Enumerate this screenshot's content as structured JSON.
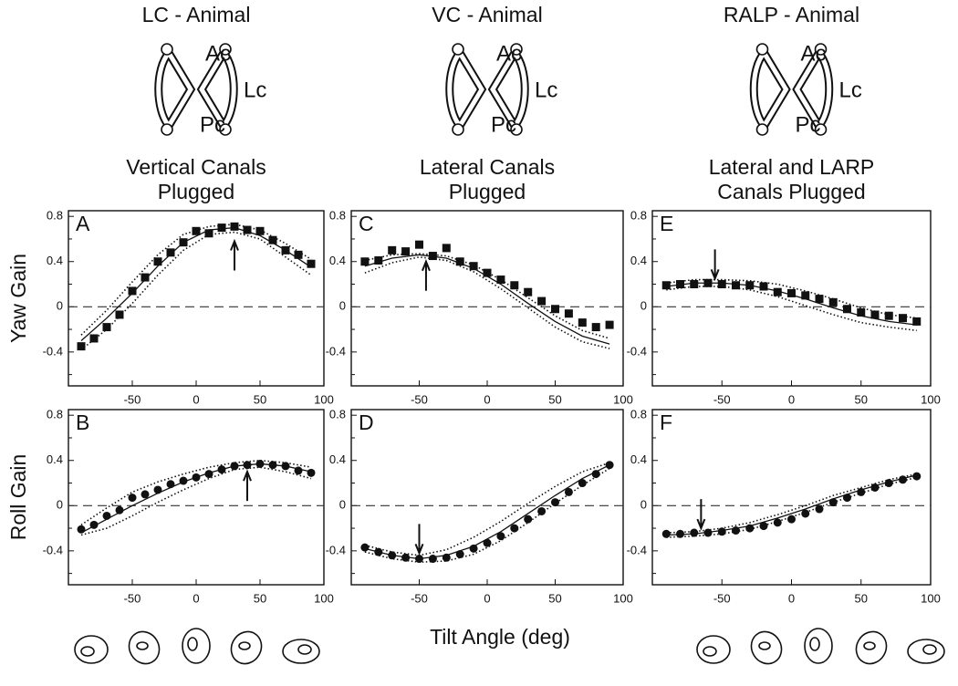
{
  "figure": {
    "columns": [
      {
        "animal": "LC - Animal",
        "condition": [
          "Vertical Canals",
          "Plugged"
        ],
        "canal_labels": [
          "Ac",
          "Lc",
          "Pc"
        ]
      },
      {
        "animal": "VC - Animal",
        "condition": [
          "Lateral Canals",
          "Plugged"
        ],
        "canal_labels": [
          "Ac",
          "Lc",
          "Pc"
        ]
      },
      {
        "animal": "RALP - Animal",
        "condition": [
          "Lateral and LARP",
          "Canals Plugged"
        ],
        "canal_labels": [
          "Ac",
          "Lc",
          "Pc"
        ]
      }
    ],
    "xlabel": "Tilt Angle (deg)"
  },
  "chart_data": [
    {
      "type": "scatter",
      "panel_label": "A",
      "ylabel": "Yaw Gain",
      "arrow_x": 30,
      "arrow_y": 0.58,
      "arrow_direction": "up",
      "x": [
        -90,
        -80,
        -70,
        -60,
        -50,
        -40,
        -30,
        -20,
        -10,
        0,
        10,
        20,
        30,
        40,
        50,
        60,
        70,
        80,
        90
      ],
      "curve_x": [
        -90,
        -70,
        -50,
        -30,
        -10,
        10,
        30,
        50,
        70,
        90
      ],
      "series": [
        {
          "marker": "square",
          "values": [
            -0.35,
            -0.28,
            -0.18,
            -0.07,
            0.14,
            0.26,
            0.4,
            0.48,
            0.57,
            0.67,
            0.65,
            0.7,
            0.71,
            0.68,
            0.67,
            0.59,
            0.5,
            0.46,
            0.38
          ]
        },
        {
          "style": "solid",
          "values": [
            -0.3,
            -0.1,
            0.12,
            0.36,
            0.57,
            0.68,
            0.7,
            0.63,
            0.5,
            0.35
          ]
        },
        {
          "style": "dotted",
          "values": [
            -0.25,
            -0.03,
            0.22,
            0.46,
            0.64,
            0.71,
            0.73,
            0.68,
            0.56,
            0.42
          ]
        },
        {
          "style": "dotted",
          "values": [
            -0.38,
            -0.2,
            0.03,
            0.28,
            0.5,
            0.64,
            0.66,
            0.6,
            0.44,
            0.28
          ]
        }
      ],
      "xlim": [
        -100,
        100
      ],
      "xticks": [
        -50,
        0,
        50,
        100
      ],
      "ylim": [
        -0.7,
        0.85
      ],
      "yticks": [
        -0.4,
        0,
        0.4,
        0.8
      ],
      "yminor": [
        -0.6,
        -0.2,
        0.2,
        0.6
      ],
      "zero_line": true,
      "color": "#111111"
    },
    {
      "type": "scatter",
      "panel_label": "B",
      "ylabel": "Roll Gain",
      "arrow_x": 40,
      "arrow_y": 0.3,
      "arrow_direction": "up",
      "x": [
        -90,
        -80,
        -70,
        -60,
        -50,
        -40,
        -30,
        -20,
        -10,
        0,
        10,
        20,
        30,
        40,
        50,
        60,
        70,
        80,
        90
      ],
      "curve_x": [
        -90,
        -70,
        -50,
        -30,
        -10,
        10,
        30,
        50,
        70,
        90
      ],
      "series": [
        {
          "marker": "circle",
          "values": [
            -0.21,
            -0.17,
            -0.09,
            -0.04,
            0.07,
            0.1,
            0.14,
            0.19,
            0.22,
            0.25,
            0.28,
            0.32,
            0.35,
            0.36,
            0.37,
            0.36,
            0.35,
            0.31,
            0.29
          ]
        },
        {
          "style": "solid",
          "values": [
            -0.24,
            -0.12,
            0.0,
            0.11,
            0.21,
            0.29,
            0.35,
            0.37,
            0.35,
            0.3
          ]
        },
        {
          "style": "dotted",
          "values": [
            -0.17,
            -0.02,
            0.12,
            0.21,
            0.28,
            0.34,
            0.38,
            0.4,
            0.38,
            0.34
          ]
        },
        {
          "style": "dotted",
          "values": [
            -0.26,
            -0.2,
            -0.09,
            0.03,
            0.14,
            0.24,
            0.32,
            0.34,
            0.3,
            0.24
          ]
        }
      ],
      "xlim": [
        -100,
        100
      ],
      "xticks": [
        -50,
        0,
        50,
        100
      ],
      "ylim": [
        -0.7,
        0.85
      ],
      "yticks": [
        -0.4,
        0,
        0.4,
        0.8
      ],
      "yminor": [
        -0.6,
        -0.2,
        0.2,
        0.6
      ],
      "zero_line": true,
      "color": "#111111"
    },
    {
      "type": "scatter",
      "panel_label": "C",
      "arrow_x": -45,
      "arrow_y": 0.4,
      "arrow_direction": "up",
      "x": [
        -90,
        -80,
        -70,
        -60,
        -50,
        -40,
        -30,
        -20,
        -10,
        0,
        10,
        20,
        30,
        40,
        50,
        60,
        70,
        80,
        90
      ],
      "curve_x": [
        -90,
        -70,
        -50,
        -30,
        -10,
        10,
        30,
        50,
        70,
        90
      ],
      "series": [
        {
          "marker": "square",
          "values": [
            0.4,
            0.41,
            0.5,
            0.49,
            0.55,
            0.45,
            0.52,
            0.4,
            0.36,
            0.3,
            0.24,
            0.19,
            0.13,
            0.05,
            -0.02,
            -0.06,
            -0.14,
            -0.18,
            -0.16
          ]
        },
        {
          "style": "solid",
          "values": [
            0.36,
            0.43,
            0.46,
            0.43,
            0.34,
            0.2,
            0.03,
            -0.13,
            -0.26,
            -0.33
          ]
        },
        {
          "style": "dotted",
          "values": [
            0.41,
            0.46,
            0.47,
            0.45,
            0.37,
            0.24,
            0.08,
            -0.08,
            -0.21,
            -0.28
          ]
        },
        {
          "style": "dotted",
          "values": [
            0.3,
            0.39,
            0.44,
            0.41,
            0.31,
            0.16,
            -0.01,
            -0.18,
            -0.31,
            -0.37
          ]
        }
      ],
      "xlim": [
        -100,
        100
      ],
      "xticks": [
        -50,
        0,
        50,
        100
      ],
      "ylim": [
        -0.7,
        0.85
      ],
      "yticks": [
        -0.4,
        0,
        0.4,
        0.8
      ],
      "yminor": [
        -0.6,
        -0.2,
        0.2,
        0.6
      ],
      "zero_line": true,
      "color": "#111111"
    },
    {
      "type": "scatter",
      "panel_label": "D",
      "arrow_x": -50,
      "arrow_y": -0.42,
      "arrow_direction": "down",
      "x": [
        -90,
        -80,
        -70,
        -60,
        -50,
        -40,
        -30,
        -20,
        -10,
        0,
        10,
        20,
        30,
        40,
        50,
        60,
        70,
        80,
        90
      ],
      "curve_x": [
        -90,
        -70,
        -50,
        -30,
        -10,
        10,
        30,
        50,
        70,
        90
      ],
      "series": [
        {
          "marker": "circle",
          "values": [
            -0.37,
            -0.41,
            -0.44,
            -0.46,
            -0.47,
            -0.47,
            -0.46,
            -0.43,
            -0.38,
            -0.33,
            -0.27,
            -0.2,
            -0.12,
            -0.05,
            0.03,
            0.12,
            0.2,
            0.28,
            0.36
          ]
        },
        {
          "style": "solid",
          "values": [
            -0.38,
            -0.44,
            -0.47,
            -0.44,
            -0.36,
            -0.23,
            -0.07,
            0.09,
            0.24,
            0.36
          ]
        },
        {
          "style": "dotted",
          "values": [
            -0.35,
            -0.41,
            -0.44,
            -0.39,
            -0.28,
            -0.14,
            0.02,
            0.17,
            0.3,
            0.38
          ]
        },
        {
          "style": "dotted",
          "values": [
            -0.41,
            -0.47,
            -0.5,
            -0.49,
            -0.43,
            -0.31,
            -0.15,
            0.02,
            0.18,
            0.33
          ]
        }
      ],
      "xlim": [
        -100,
        100
      ],
      "xticks": [
        -50,
        0,
        50,
        100
      ],
      "ylim": [
        -0.7,
        0.85
      ],
      "yticks": [
        -0.4,
        0,
        0.4,
        0.8
      ],
      "yminor": [
        -0.6,
        -0.2,
        0.2,
        0.6
      ],
      "zero_line": true,
      "color": "#111111"
    },
    {
      "type": "scatter",
      "panel_label": "E",
      "arrow_x": -55,
      "arrow_y": 0.25,
      "arrow_direction": "down",
      "x": [
        -90,
        -80,
        -70,
        -60,
        -50,
        -40,
        -30,
        -20,
        -10,
        0,
        10,
        20,
        30,
        40,
        50,
        60,
        70,
        80,
        90
      ],
      "curve_x": [
        -90,
        -70,
        -50,
        -30,
        -10,
        10,
        30,
        50,
        70,
        90
      ],
      "series": [
        {
          "marker": "square",
          "values": [
            0.19,
            0.2,
            0.2,
            0.21,
            0.2,
            0.19,
            0.19,
            0.18,
            0.13,
            0.12,
            0.1,
            0.07,
            0.04,
            -0.02,
            -0.05,
            -0.07,
            -0.08,
            -0.1,
            -0.13
          ]
        },
        {
          "style": "solid",
          "values": [
            0.18,
            0.21,
            0.21,
            0.19,
            0.14,
            0.07,
            -0.01,
            -0.08,
            -0.13,
            -0.16
          ]
        },
        {
          "style": "dotted",
          "values": [
            0.21,
            0.24,
            0.24,
            0.23,
            0.2,
            0.14,
            0.07,
            -0.01,
            -0.07,
            -0.1
          ]
        },
        {
          "style": "dotted",
          "values": [
            0.15,
            0.18,
            0.18,
            0.15,
            0.09,
            0.01,
            -0.07,
            -0.14,
            -0.18,
            -0.21
          ]
        }
      ],
      "xlim": [
        -100,
        100
      ],
      "xticks": [
        -50,
        0,
        50,
        100
      ],
      "ylim": [
        -0.7,
        0.85
      ],
      "yticks": [
        -0.4,
        0,
        0.4,
        0.8
      ],
      "yminor": [
        -0.6,
        -0.2,
        0.2,
        0.6
      ],
      "zero_line": true,
      "color": "#111111"
    },
    {
      "type": "scatter",
      "panel_label": "F",
      "arrow_x": -65,
      "arrow_y": -0.2,
      "arrow_direction": "down",
      "x": [
        -90,
        -80,
        -70,
        -60,
        -50,
        -40,
        -30,
        -20,
        -10,
        0,
        10,
        20,
        30,
        40,
        50,
        60,
        70,
        80,
        90
      ],
      "curve_x": [
        -90,
        -70,
        -50,
        -30,
        -10,
        10,
        30,
        50,
        70,
        90
      ],
      "series": [
        {
          "marker": "circle",
          "values": [
            -0.25,
            -0.25,
            -0.24,
            -0.24,
            -0.23,
            -0.22,
            -0.2,
            -0.18,
            -0.15,
            -0.12,
            -0.07,
            -0.03,
            0.03,
            0.07,
            0.12,
            0.16,
            0.2,
            0.23,
            0.26
          ]
        },
        {
          "style": "solid",
          "values": [
            -0.26,
            -0.25,
            -0.22,
            -0.18,
            -0.11,
            -0.03,
            0.06,
            0.14,
            0.21,
            0.27
          ]
        },
        {
          "style": "dotted",
          "values": [
            -0.24,
            -0.23,
            -0.2,
            -0.15,
            -0.08,
            0.0,
            0.09,
            0.16,
            0.23,
            0.28
          ]
        },
        {
          "style": "dotted",
          "values": [
            -0.28,
            -0.27,
            -0.25,
            -0.21,
            -0.14,
            -0.06,
            0.03,
            0.11,
            0.19,
            0.25
          ]
        }
      ],
      "xlim": [
        -100,
        100
      ],
      "xticks": [
        -50,
        0,
        50,
        100
      ],
      "ylim": [
        -0.7,
        0.85
      ],
      "yticks": [
        -0.4,
        0,
        0.4,
        0.8
      ],
      "yminor": [
        -0.6,
        -0.2,
        0.2,
        0.6
      ],
      "zero_line": true,
      "color": "#111111"
    }
  ]
}
